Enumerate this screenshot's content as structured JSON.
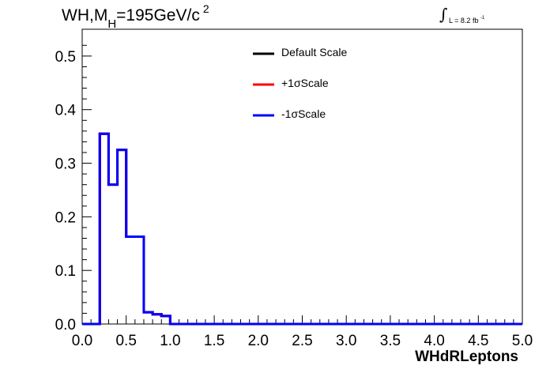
{
  "title": {
    "main": "WH,M",
    "subscript": "H",
    "value": "=195GeV/c",
    "superscript": "2"
  },
  "lumi": {
    "integral": "∫",
    "text": "L = 8.2 fb",
    "superscript": "-1"
  },
  "legend": [
    {
      "label": "Default Scale",
      "color": "#000000"
    },
    {
      "label": "+1σScale",
      "color": "#ff0000"
    },
    {
      "label": "-1σScale",
      "color": "#0000ff"
    }
  ],
  "chart_data": {
    "type": "line",
    "style": "step-histogram",
    "xlabel": "WHdRLeptons",
    "ylabel": "",
    "xlim": [
      0.0,
      5.0
    ],
    "ylim": [
      0.0,
      0.55
    ],
    "x_ticks": [
      "0.0",
      "0.5",
      "1.0",
      "1.5",
      "2.0",
      "2.5",
      "3.0",
      "3.5",
      "4.0",
      "4.5",
      "5.0"
    ],
    "y_ticks": [
      "0.0",
      "0.1",
      "0.2",
      "0.3",
      "0.4",
      "0.5"
    ],
    "bin_width": 0.1,
    "bin_edges": [
      0.0,
      0.1,
      0.2,
      0.3,
      0.4,
      0.5,
      0.6,
      0.7,
      0.8,
      0.9,
      1.0,
      1.1,
      1.2,
      1.3,
      1.4,
      1.5,
      1.6,
      1.7,
      1.8,
      1.9,
      2.0,
      2.1,
      2.2,
      2.3,
      2.4,
      2.5,
      2.6,
      2.7,
      2.8,
      2.9,
      3.0,
      3.1,
      3.2,
      3.3,
      3.4,
      3.5,
      3.6,
      3.7,
      3.8,
      3.9,
      4.0,
      4.1,
      4.2,
      4.3,
      4.4,
      4.5,
      4.6,
      4.7,
      4.8,
      4.9,
      5.0
    ],
    "series": [
      {
        "name": "Default Scale",
        "color": "#000000",
        "values": [
          0.0,
          0.0,
          0.355,
          0.26,
          0.325,
          0.163,
          0.163,
          0.022,
          0.018,
          0.015,
          0.0,
          0.0,
          0.0,
          0.0,
          0.0,
          0.0,
          0.0,
          0.0,
          0.0,
          0.0,
          0.0,
          0.0,
          0.0,
          0.0,
          0.0,
          0.0,
          0.0,
          0.0,
          0.0,
          0.0,
          0.0,
          0.0,
          0.0,
          0.0,
          0.0,
          0.0,
          0.0,
          0.0,
          0.0,
          0.0,
          0.0,
          0.0,
          0.0,
          0.0,
          0.0,
          0.0,
          0.0,
          0.0,
          0.0,
          0.0
        ]
      },
      {
        "name": "+1σScale",
        "color": "#ff0000",
        "values": [
          0.0,
          0.0,
          0.355,
          0.26,
          0.325,
          0.163,
          0.163,
          0.022,
          0.018,
          0.015,
          0.0,
          0.0,
          0.0,
          0.0,
          0.0,
          0.0,
          0.0,
          0.0,
          0.0,
          0.0,
          0.0,
          0.0,
          0.0,
          0.0,
          0.0,
          0.0,
          0.0,
          0.0,
          0.0,
          0.0,
          0.0,
          0.0,
          0.0,
          0.0,
          0.0,
          0.0,
          0.0,
          0.0,
          0.0,
          0.0,
          0.0,
          0.0,
          0.0,
          0.0,
          0.0,
          0.0,
          0.0,
          0.0,
          0.0,
          0.0
        ]
      },
      {
        "name": "-1σScale",
        "color": "#0000ff",
        "values": [
          0.0,
          0.0,
          0.355,
          0.26,
          0.325,
          0.163,
          0.163,
          0.022,
          0.018,
          0.015,
          0.0,
          0.0,
          0.0,
          0.0,
          0.0,
          0.0,
          0.0,
          0.0,
          0.0,
          0.0,
          0.0,
          0.0,
          0.0,
          0.0,
          0.0,
          0.0,
          0.0,
          0.0,
          0.0,
          0.0,
          0.0,
          0.0,
          0.0,
          0.0,
          0.0,
          0.0,
          0.0,
          0.0,
          0.0,
          0.0,
          0.0,
          0.0,
          0.0,
          0.0,
          0.0,
          0.0,
          0.0,
          0.0,
          0.0,
          0.0
        ]
      }
    ],
    "grid": false,
    "legend_position": "top-center"
  }
}
